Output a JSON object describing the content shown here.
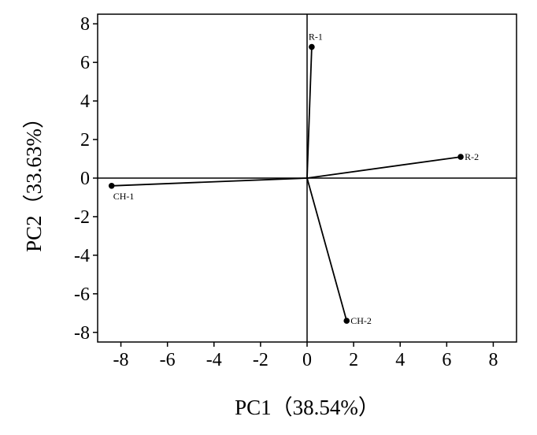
{
  "chart_data": {
    "type": "scatter",
    "title": "",
    "xlabel": "PC1（38.54%）",
    "ylabel": "PC2（33.63%）",
    "xlim": [
      -9,
      9
    ],
    "ylim": [
      -8.5,
      8.5
    ],
    "x_ticks": [
      -8,
      -6,
      -4,
      -2,
      0,
      2,
      4,
      6,
      8
    ],
    "y_ticks": [
      8,
      6,
      4,
      2,
      0,
      -2,
      -4,
      -6,
      -8
    ],
    "x_tick_labels": [
      "-8",
      "-6",
      "-4",
      "-2",
      "0",
      "2",
      "4",
      "6",
      "8"
    ],
    "y_tick_labels": [
      "8",
      "6",
      "4",
      "2",
      "0",
      "-2",
      "-4",
      "-6",
      "-8"
    ],
    "grid": false,
    "reference_lines": {
      "x": 0,
      "y": 0
    },
    "vectors_from_origin": true,
    "points": [
      {
        "label": "R-1",
        "x": 0.2,
        "y": 6.8
      },
      {
        "label": "R-2",
        "x": 6.6,
        "y": 1.1
      },
      {
        "label": "CH-1",
        "x": -8.4,
        "y": -0.4
      },
      {
        "label": "CH-2",
        "x": 1.7,
        "y": -7.4
      }
    ],
    "colors": {
      "line": "#000000",
      "marker": "#000000"
    }
  }
}
